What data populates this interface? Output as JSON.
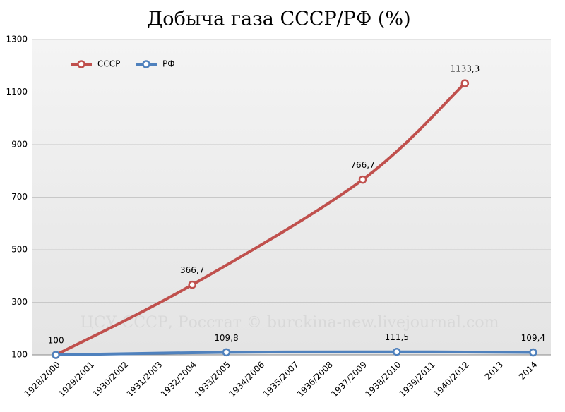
{
  "chart_data": {
    "type": "line",
    "title": "Добыча газа СССР/РФ (%)",
    "watermark": "ЦСУ СССР, Росстат © burckina-new.livejournal.com",
    "categories": [
      "1928/2000",
      "1929/2001",
      "1930/2002",
      "1931/2003",
      "1932/2004",
      "1933/2005",
      "1934/2006",
      "1935/2007",
      "1936/2008",
      "1937/2009",
      "1938/2010",
      "1939/2011",
      "1940/2012",
      "2013",
      "2014"
    ],
    "ylim": [
      100,
      1300
    ],
    "yticks": [
      100,
      300,
      500,
      700,
      900,
      1100,
      1300
    ],
    "grid": true,
    "legend": "top-left",
    "connect_gaps": true,
    "smooth": true,
    "series": [
      {
        "name": "СССР",
        "color": "#c0504d",
        "values": [
          100,
          null,
          null,
          null,
          366.7,
          null,
          null,
          null,
          null,
          766.7,
          null,
          null,
          1133.3,
          null,
          null
        ],
        "value_labels": [
          "100",
          null,
          null,
          null,
          "366,7",
          null,
          null,
          null,
          null,
          "766,7",
          null,
          null,
          "1133,3",
          null,
          null
        ]
      },
      {
        "name": "РФ",
        "color": "#4f81bd",
        "values": [
          100,
          null,
          null,
          null,
          null,
          109.8,
          null,
          null,
          null,
          null,
          111.5,
          null,
          null,
          null,
          109.4
        ],
        "value_labels": [
          null,
          null,
          null,
          null,
          null,
          "109,8",
          null,
          null,
          null,
          null,
          "111,5",
          null,
          null,
          null,
          "109,4"
        ]
      }
    ]
  }
}
